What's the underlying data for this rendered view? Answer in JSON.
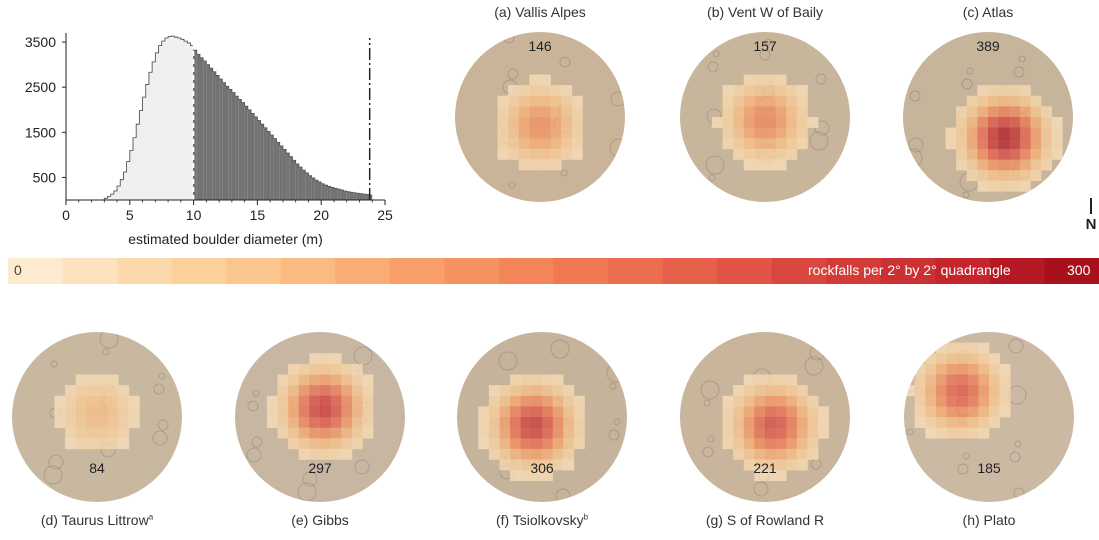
{
  "chart_data": [
    {
      "type": "bar",
      "title": "",
      "xlabel": "estimated boulder diameter (m)",
      "ylabel": "",
      "xlim": [
        0,
        25
      ],
      "ylim": [
        0,
        3700
      ],
      "xticks": [
        "0",
        "5",
        "10",
        "15",
        "20",
        "25"
      ],
      "yticks": [
        "500",
        "1500",
        "2500",
        "3500"
      ],
      "threshold_diameter": 10,
      "dashdot_line_x": 23.8,
      "series": [
        {
          "color": "#efefef",
          "bin_width": 0.25,
          "bin_starts": [
            3.0,
            3.25,
            3.5,
            3.75,
            4.0,
            4.25,
            4.5,
            4.75,
            5.0,
            5.25,
            5.5,
            5.75,
            6.0,
            6.25,
            6.5,
            6.75,
            7.0,
            7.25,
            7.5,
            7.75,
            8.0,
            8.25,
            8.5,
            8.75,
            9.0,
            9.25,
            9.5,
            9.75
          ],
          "values": [
            40,
            80,
            130,
            200,
            310,
            450,
            620,
            850,
            1100,
            1380,
            1680,
            1980,
            2280,
            2560,
            2830,
            3060,
            3260,
            3420,
            3520,
            3590,
            3620,
            3630,
            3610,
            3590,
            3560,
            3520,
            3480,
            3420
          ]
        },
        {
          "color": "#727272",
          "bin_width": 0.25,
          "bin_starts": [
            10.0,
            10.25,
            10.5,
            10.75,
            11.0,
            11.25,
            11.5,
            11.75,
            12.0,
            12.25,
            12.5,
            12.75,
            13.0,
            13.25,
            13.5,
            13.75,
            14.0,
            14.25,
            14.5,
            14.75,
            15.0,
            15.25,
            15.5,
            15.75,
            16.0,
            16.25,
            16.5,
            16.75,
            17.0,
            17.25,
            17.5,
            17.75,
            18.0,
            18.25,
            18.5,
            18.75,
            19.0,
            19.25,
            19.5,
            19.75,
            20.0,
            20.25,
            20.5,
            20.75,
            21.0,
            21.25,
            21.5,
            21.75,
            22.0,
            22.25,
            22.5,
            22.75,
            23.0,
            23.25,
            23.5,
            23.75
          ],
          "values": [
            3320,
            3230,
            3150,
            3080,
            3000,
            2920,
            2840,
            2760,
            2680,
            2600,
            2520,
            2450,
            2380,
            2300,
            2230,
            2160,
            2080,
            2000,
            1920,
            1840,
            1760,
            1680,
            1600,
            1520,
            1440,
            1360,
            1280,
            1200,
            1120,
            1040,
            960,
            880,
            800,
            730,
            660,
            600,
            540,
            490,
            440,
            400,
            360,
            330,
            300,
            280,
            260,
            240,
            220,
            200,
            185,
            170,
            160,
            150,
            140,
            130,
            120,
            110
          ]
        }
      ]
    },
    {
      "type": "heatmap",
      "title": "rockfalls per 2° by 2° quadrangle",
      "colorbar_min": "0",
      "colorbar_max": "300",
      "colormap": [
        "#fdebd0",
        "#fcd8a8",
        "#fbc48a",
        "#f9a86f",
        "#f58c5c",
        "#ee7150",
        "#e35848",
        "#d53d3b",
        "#c4262c",
        "#a8101c"
      ],
      "panels": [
        {
          "id": "a",
          "label": "(a) Vallis Alpes",
          "count": "146",
          "base_color": "#c9b49a",
          "peak": 0.45,
          "hotspot": [
            0.5,
            0.55
          ]
        },
        {
          "id": "b",
          "label": "(b) Vent W of Baily",
          "count": "157",
          "base_color": "#c8b69c",
          "peak": 0.5,
          "hotspot": [
            0.5,
            0.52
          ]
        },
        {
          "id": "c",
          "label": "(c) Atlas",
          "count": "389",
          "base_color": "#c6b49b",
          "peak": 1.0,
          "hotspot": [
            0.6,
            0.62
          ]
        },
        {
          "id": "d",
          "label": "(d) Taurus Littrow",
          "label_sup": "a",
          "count": "84",
          "base_color": "#c9b8a0",
          "peak": 0.25,
          "hotspot": [
            0.5,
            0.48
          ]
        },
        {
          "id": "e",
          "label": "(e) Gibbs",
          "count": "297",
          "base_color": "#c7b7a2",
          "peak": 0.85,
          "hotspot": [
            0.52,
            0.45
          ]
        },
        {
          "id": "f",
          "label": "(f) Tsiolkovsky",
          "label_sup": "b",
          "count": "306",
          "base_color": "#c6b39c",
          "peak": 0.85,
          "hotspot": [
            0.45,
            0.55
          ]
        },
        {
          "id": "g",
          "label": "(g) S of Rowland R",
          "count": "221",
          "base_color": "#c8b59b",
          "peak": 0.75,
          "hotspot": [
            0.55,
            0.55
          ]
        },
        {
          "id": "h",
          "label": "(h) Plato",
          "count": "185",
          "base_color": "#cbb9a3",
          "peak": 0.7,
          "hotspot": [
            0.33,
            0.35
          ]
        }
      ]
    }
  ],
  "north_label": "N"
}
